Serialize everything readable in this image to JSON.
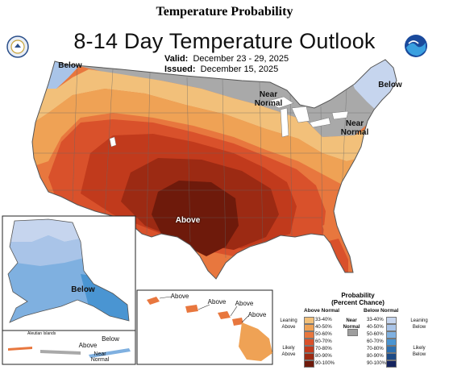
{
  "page_title": "Temperature Probability",
  "map_title": "8-14 Day Temperature Outlook",
  "valid": {
    "label": "Valid:",
    "value": "December 23 - 29, 2025"
  },
  "issued": {
    "label": "Issued:",
    "value": "December 15, 2025"
  },
  "map_labels": {
    "above_main": "Above",
    "below_northwest": "Below",
    "below_northeast": "Below",
    "near_normal_north": "Near\nNormal",
    "near_normal_east": "Near\nNormal",
    "alaska_below": "Below",
    "hawaii_above_1": "Above",
    "hawaii_above_2": "Above",
    "hawaii_above_3": "Above",
    "aleutian_title": "Aleutian Islands",
    "aleutian_above": "Above",
    "aleutian_below": "Below",
    "aleutian_near_normal": "Near\nNormal"
  },
  "legend": {
    "title": "Probability\n(Percent Chance)",
    "above_header": "Above Normal",
    "below_header": "Below Normal",
    "near_label": "Near\nNormal",
    "leaning_above": "Leaning\nAbove",
    "likely_above": "Likely\nAbove",
    "leaning_below": "Leaning\nBelow",
    "likely_below": "Likely\nBelow",
    "ranges": [
      "33-40%",
      "40-50%",
      "50-60%",
      "60-70%",
      "70-80%",
      "80-90%",
      "90-100%"
    ],
    "above_colors": [
      "#f2c07a",
      "#efa255",
      "#e8773e",
      "#d9512b",
      "#c13a1c",
      "#9c2a13",
      "#6e1a0b"
    ],
    "below_colors": [
      "#c6d5ee",
      "#a9c4e8",
      "#7fb0e0",
      "#4a95d2",
      "#2c6fb0",
      "#1d4a86",
      "#15245f"
    ],
    "near_color": "#9e9e9e"
  },
  "map_colors": {
    "a33": "#f2c07a",
    "a40": "#efa255",
    "a50": "#e8773e",
    "a60": "#d9512b",
    "a70": "#c13a1c",
    "a80": "#9c2a13",
    "a90": "#6e1a0b",
    "near": "#a9a9a9",
    "b33": "#c6d5ee",
    "b40": "#a9c4e8",
    "b50": "#7fb0e0",
    "b60": "#4a95d2"
  }
}
